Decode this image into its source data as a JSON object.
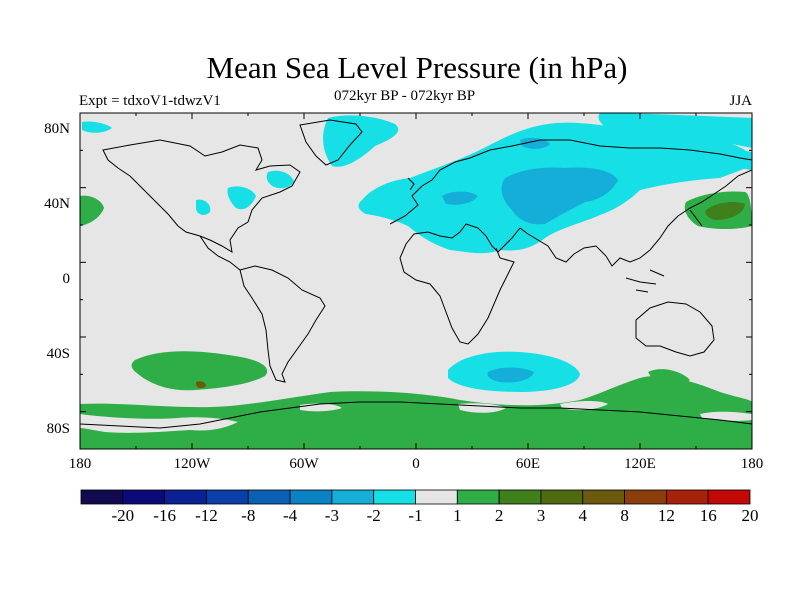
{
  "map": {
    "title": "Mean Sea Level Pressure (in hPa)",
    "experiment_label": "Expt = tdxoV1-tdwzV1",
    "period_label": "072kyr BP - 072kyr BP",
    "season_label": "JJA",
    "lat_ticks": [
      "80N",
      "40N",
      "0",
      "40S",
      "80S"
    ],
    "lon_ticks": [
      "180",
      "120W",
      "60W",
      "0",
      "60E",
      "120E",
      "180"
    ]
  },
  "colorbar": {
    "colors": [
      "#120a4e",
      "#0b0a78",
      "#0a2196",
      "#0a3ea8",
      "#0b5fb4",
      "#0b82c4",
      "#14aed8",
      "#16e0e6",
      "#e6e6e6",
      "#2fae48",
      "#3f7f1c",
      "#4f6a10",
      "#6b5a0e",
      "#8a3e0a",
      "#a8220a",
      "#c30808"
    ],
    "labels": [
      "-20",
      "-16",
      "-12",
      "-8",
      "-4",
      "-3",
      "-2",
      "-1",
      "1",
      "2",
      "3",
      "4",
      "8",
      "12",
      "16",
      "20"
    ]
  },
  "style": {
    "background": "#e6e6e6",
    "neg1": "#16e0e6",
    "neg2": "#14aed8",
    "pos1": "#2fae48",
    "pos2": "#3f7f1c",
    "pos4": "#6b5a0e",
    "coast": "#000000"
  }
}
